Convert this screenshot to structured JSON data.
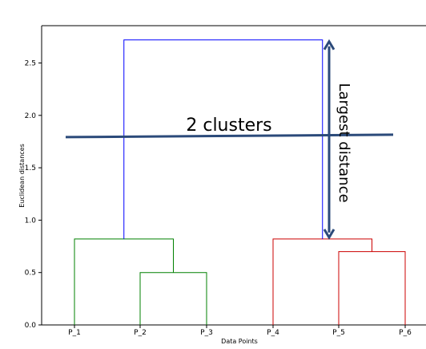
{
  "chart_data": {
    "type": "dendrogram",
    "title": "",
    "xlabel": "Data Points",
    "ylabel": "Euclidean distances",
    "ylim": [
      0,
      2.85
    ],
    "yticks": [
      "0.0",
      "0.5",
      "1.0",
      "1.5",
      "2.0",
      "2.5"
    ],
    "categories": [
      "P_1",
      "P_2",
      "P_3",
      "P_4",
      "P_5",
      "P_6"
    ],
    "merges": [
      {
        "left": "P_2",
        "right": "P_3",
        "height": 0.5,
        "color": "#008000"
      },
      {
        "left": "P_1",
        "right": "P_2+P_3",
        "height": 0.82,
        "color": "#008000"
      },
      {
        "left": "P_5",
        "right": "P_6",
        "height": 0.7,
        "color": "#cc0000"
      },
      {
        "left": "P_4",
        "right": "P_5+P_6",
        "height": 0.82,
        "color": "#cc0000"
      },
      {
        "left": "cluster_green",
        "right": "cluster_red",
        "height": 2.72,
        "color": "#0000ff"
      }
    ],
    "threshold": {
      "value": 1.8,
      "label": "2 clusters",
      "color": "#2b4a7a"
    },
    "annotation": {
      "label": "Largest distance",
      "from": 2.72,
      "to": 0.82,
      "color": "#2b4a7a"
    },
    "grid": false
  }
}
